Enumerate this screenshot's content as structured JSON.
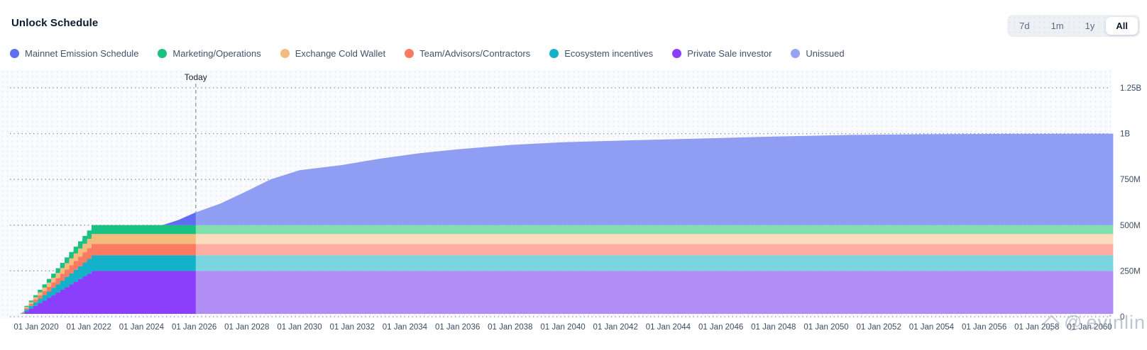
{
  "header": {
    "title": "Unlock Schedule"
  },
  "time_ranges": [
    {
      "label": "7d",
      "selected": false
    },
    {
      "label": "1m",
      "selected": false
    },
    {
      "label": "1y",
      "selected": false
    },
    {
      "label": "All",
      "selected": true
    }
  ],
  "watermark": {
    "diamond_icon": "◇",
    "at_icon": "@",
    "text": "evinlin"
  },
  "chart_data": {
    "type": "area",
    "stacked": true,
    "title": "Unlock Schedule",
    "grid": "dotted-horizontal",
    "legend_position": "top",
    "x_start": 2019.38,
    "x_end": 2060.9,
    "x_axis": {
      "ticks": [
        {
          "year": 2020,
          "label": "01 Jan 2020"
        },
        {
          "year": 2022,
          "label": "01 Jan 2022"
        },
        {
          "year": 2024,
          "label": "01 Jan 2024"
        },
        {
          "year": 2026,
          "label": "01 Jan 2026"
        },
        {
          "year": 2028,
          "label": "01 Jan 2028"
        },
        {
          "year": 2030,
          "label": "01 Jan 2030"
        },
        {
          "year": 2032,
          "label": "01 Jan 2032"
        },
        {
          "year": 2034,
          "label": "01 Jan 2034"
        },
        {
          "year": 2036,
          "label": "01 Jan 2036"
        },
        {
          "year": 2038,
          "label": "01 Jan 2038"
        },
        {
          "year": 2040,
          "label": "01 Jan 2040"
        },
        {
          "year": 2042,
          "label": "01 Jan 2042"
        },
        {
          "year": 2044,
          "label": "01 Jan 2044"
        },
        {
          "year": 2046,
          "label": "01 Jan 2046"
        },
        {
          "year": 2048,
          "label": "01 Jan 2048"
        },
        {
          "year": 2050,
          "label": "01 Jan 2050"
        },
        {
          "year": 2052,
          "label": "01 Jan 2052"
        },
        {
          "year": 2054,
          "label": "01 Jan 2054"
        },
        {
          "year": 2056,
          "label": "01 Jan 2056"
        },
        {
          "year": 2058,
          "label": "01 Jan 2058"
        },
        {
          "year": 2060,
          "label": "01 Jan 2060"
        }
      ]
    },
    "y_axis": {
      "unit_note": "token amounts in millions",
      "ylim": [
        0,
        1250
      ],
      "ticks": [
        {
          "value": 0,
          "label": "0"
        },
        {
          "value": 250,
          "label": "250M"
        },
        {
          "value": 500,
          "label": "500M"
        },
        {
          "value": 750,
          "label": "750M"
        },
        {
          "value": 1000,
          "label": "1B"
        },
        {
          "value": 1250,
          "label": "1.25B"
        }
      ]
    },
    "today_marker": {
      "label": "Today",
      "year": 2026.06
    },
    "ramp": {
      "start": 2019.38,
      "end": 2022.27,
      "steps": 17
    },
    "series": [
      {
        "name": "Mainnet Emission Schedule",
        "color": "#5e6df1",
        "faded": "#8f9df3",
        "points": [
          [
            2024.8,
            0
          ],
          [
            2025.4,
            28
          ],
          [
            2026.06,
            70
          ],
          [
            2027,
            118
          ],
          [
            2028,
            186
          ],
          [
            2028.9,
            250
          ],
          [
            2030,
            300
          ],
          [
            2031.6,
            328
          ],
          [
            2033,
            362
          ],
          [
            2034.5,
            392
          ],
          [
            2036,
            414
          ],
          [
            2038,
            438
          ],
          [
            2040,
            453
          ],
          [
            2043,
            465
          ],
          [
            2045,
            472
          ],
          [
            2048,
            484
          ],
          [
            2051,
            493
          ],
          [
            2054,
            497
          ],
          [
            2057,
            499
          ],
          [
            2060.9,
            500
          ]
        ]
      },
      {
        "name": "Marketing/Operations",
        "color": "#19c183",
        "faded": "#80e0ad",
        "plateau": 48
      },
      {
        "name": "Exchange Cold Wallet",
        "color": "#f5ba7d",
        "faded": "#fadcbc",
        "plateau": 54
      },
      {
        "name": "Team/Advisors/Contractors",
        "color": "#fb7a62",
        "faded": "#fdaea1",
        "plateau": 63
      },
      {
        "name": "Ecosystem incentives",
        "color": "#14b2c8",
        "faded": "#79d6e1",
        "plateau": 85
      },
      {
        "name": "Private Sale investor",
        "color": "#8b3ffc",
        "faded": "#b18ef6",
        "plateau": 250
      },
      {
        "name": "Unissued",
        "color": "#94a3f3",
        "faded": "#94a3f3",
        "legend_only": true
      }
    ],
    "stack_order": [
      "Private Sale investor",
      "Ecosystem incentives",
      "Team/Advisors/Contractors",
      "Exchange Cold Wallet",
      "Marketing/Operations",
      "Mainnet Emission Schedule"
    ],
    "future_rendering": "series drawn in faded color to the right of Today marker"
  }
}
